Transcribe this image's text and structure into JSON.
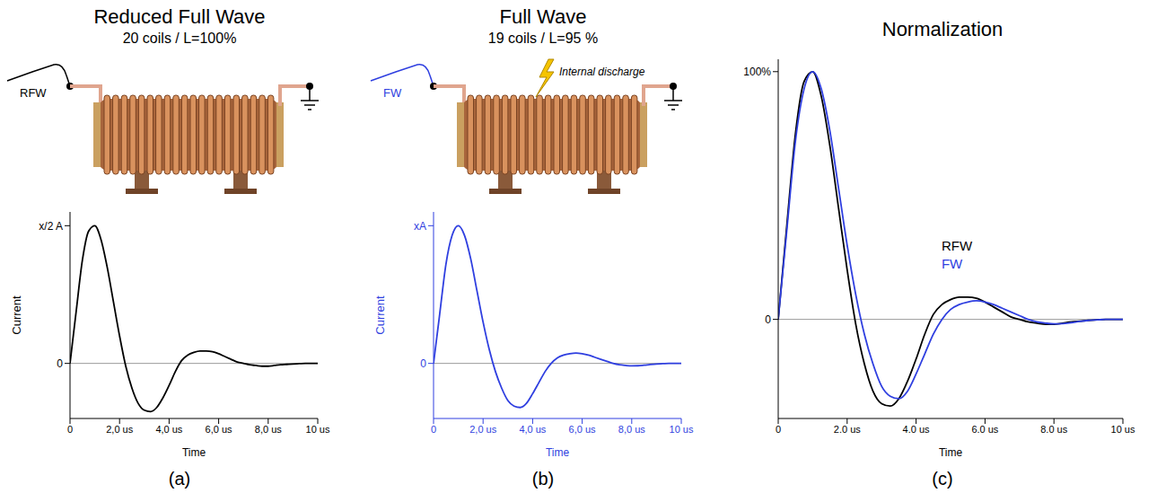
{
  "chart_data": [
    {
      "type": "line",
      "title": "Reduced Full Wave",
      "subtitle": "20 coils / L=100%",
      "panel_label": "(a)",
      "annotations": [
        "RFW"
      ],
      "x_label": "Time",
      "y_label": "Current",
      "color": "#000000",
      "grid": false,
      "x": [
        0,
        0.25,
        0.5,
        0.75,
        1,
        1.25,
        1.5,
        1.75,
        2,
        2.25,
        2.5,
        2.75,
        3,
        3.25,
        3.5,
        3.75,
        4,
        4.25,
        4.5,
        4.75,
        5,
        5.25,
        5.5,
        5.75,
        6,
        6.25,
        6.5,
        6.75,
        7,
        7.25,
        7.5,
        7.75,
        8,
        8.25,
        8.5,
        8.75,
        9,
        9.25,
        9.5,
        9.75,
        10
      ],
      "values": [
        0,
        0.38,
        0.75,
        0.96,
        1.0,
        0.9,
        0.7,
        0.45,
        0.2,
        -0.02,
        -0.18,
        -0.29,
        -0.34,
        -0.35,
        -0.32,
        -0.25,
        -0.16,
        -0.06,
        0.02,
        0.06,
        0.08,
        0.09,
        0.09,
        0.085,
        0.07,
        0.05,
        0.03,
        0.01,
        0,
        -0.01,
        -0.015,
        -0.02,
        -0.02,
        -0.015,
        -0.01,
        -0.007,
        -0.004,
        -0.002,
        0,
        0,
        0
      ],
      "xlim": [
        0,
        10
      ],
      "xticks": [
        0,
        {
          "value": 2,
          "label": "2,0 us"
        },
        {
          "value": 4,
          "label": "4,0 us"
        },
        {
          "value": 6,
          "label": "6,0 us"
        },
        {
          "value": 8,
          "label": "8,0 us"
        },
        {
          "value": 10,
          "label": "10 us"
        }
      ],
      "ylim": [
        -0.4,
        1.1
      ],
      "yticks": [
        0,
        {
          "value": 1,
          "label": "x/2 A"
        }
      ]
    },
    {
      "type": "line",
      "title": "Full Wave",
      "subtitle": "19 coils / L=95 %",
      "panel_label": "(b)",
      "annotations": [
        "FW",
        "Internal discharge"
      ],
      "x_label": "Time",
      "y_label": "Current",
      "color": "#2f3fe0",
      "grid": false,
      "x": [
        0,
        0.25,
        0.5,
        0.75,
        1,
        1.25,
        1.5,
        1.75,
        2,
        2.25,
        2.5,
        2.75,
        3,
        3.25,
        3.5,
        3.75,
        4,
        4.25,
        4.5,
        4.75,
        5,
        5.25,
        5.5,
        5.75,
        6,
        6.25,
        6.5,
        6.75,
        7,
        7.25,
        7.5,
        7.75,
        8,
        8.25,
        8.5,
        8.75,
        9,
        9.25,
        9.5,
        9.75,
        10
      ],
      "values": [
        0,
        0.36,
        0.72,
        0.93,
        1.0,
        0.93,
        0.76,
        0.53,
        0.3,
        0.1,
        -0.06,
        -0.18,
        -0.27,
        -0.31,
        -0.32,
        -0.29,
        -0.22,
        -0.14,
        -0.06,
        0,
        0.04,
        0.06,
        0.07,
        0.075,
        0.07,
        0.06,
        0.045,
        0.03,
        0.015,
        0,
        -0.01,
        -0.015,
        -0.018,
        -0.017,
        -0.013,
        -0.008,
        -0.004,
        -0.002,
        0,
        0,
        0
      ],
      "xlim": [
        0,
        10
      ],
      "xticks": [
        0,
        {
          "value": 2,
          "label": "2,0 us"
        },
        {
          "value": 4,
          "label": "4,0 us"
        },
        {
          "value": 6,
          "label": "6,0 us"
        },
        {
          "value": 8,
          "label": "8,0 us"
        },
        {
          "value": 10,
          "label": "10 us"
        }
      ],
      "ylim": [
        -0.4,
        1.1
      ],
      "yticks": [
        0,
        {
          "value": 1,
          "label": "xA"
        }
      ]
    },
    {
      "type": "line",
      "title": "Normalization",
      "panel_label": "(c)",
      "x_label": "Time",
      "grid": false,
      "legend": "middle",
      "x": [
        0,
        0.25,
        0.5,
        0.75,
        1,
        1.25,
        1.5,
        1.75,
        2,
        2.25,
        2.5,
        2.75,
        3,
        3.25,
        3.5,
        3.75,
        4,
        4.25,
        4.5,
        4.75,
        5,
        5.25,
        5.5,
        5.75,
        6,
        6.25,
        6.5,
        6.75,
        7,
        7.25,
        7.5,
        7.75,
        8,
        8.25,
        8.5,
        8.75,
        9,
        9.25,
        9.5,
        9.75,
        10
      ],
      "series": [
        {
          "name": "RFW",
          "color": "#000000",
          "values": [
            0,
            38,
            75,
            96,
            100,
            90,
            70,
            45,
            20,
            -2,
            -18,
            -29,
            -34,
            -35,
            -32,
            -25,
            -16,
            -6,
            2,
            6,
            8,
            9,
            9,
            8.5,
            7,
            5,
            3,
            1,
            0,
            -1,
            -1.5,
            -2,
            -2,
            -1.5,
            -1,
            -0.7,
            -0.4,
            -0.2,
            0,
            0,
            0
          ]
        },
        {
          "name": "FW",
          "color": "#2f3fe0",
          "values": [
            0,
            36,
            72,
            93,
            100,
            93,
            76,
            53,
            30,
            10,
            -6,
            -18,
            -27,
            -31,
            -32,
            -29,
            -22,
            -14,
            -6,
            0,
            4,
            6,
            7,
            7.5,
            7,
            6,
            4.5,
            3,
            1.5,
            0,
            -1,
            -1.5,
            -1.8,
            -1.7,
            -1.3,
            -0.8,
            -0.4,
            -0.2,
            0,
            0,
            0
          ]
        }
      ],
      "xlim": [
        0,
        10
      ],
      "xticks": [
        0,
        {
          "value": 2,
          "label": "2.0 us"
        },
        {
          "value": 4,
          "label": "4.0 us"
        },
        {
          "value": 6,
          "label": "6.0 us"
        },
        {
          "value": 8,
          "label": "8.0 us"
        },
        {
          "value": 10,
          "label": "10 us"
        }
      ],
      "ylim": [
        -40,
        105
      ],
      "yticks": [
        0,
        {
          "value": 100,
          "label": "100%"
        }
      ]
    }
  ]
}
